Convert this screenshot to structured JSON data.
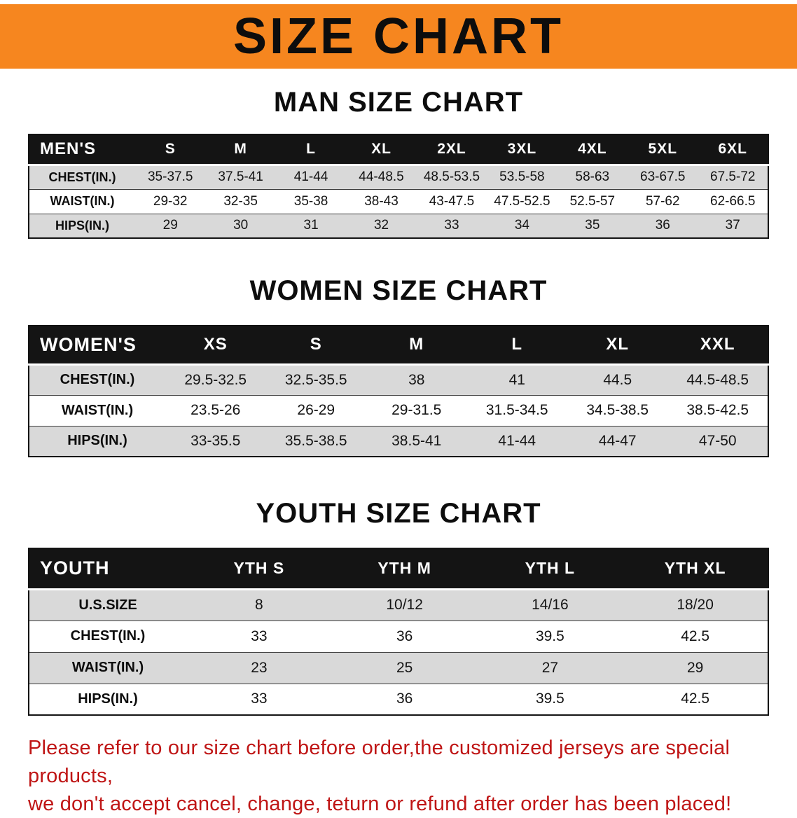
{
  "banner": {
    "title": "SIZE CHART"
  },
  "sections": [
    {
      "id": "men",
      "heading": "MAN SIZE CHART",
      "table": {
        "header": [
          "MEN'S",
          "S",
          "M",
          "L",
          "XL",
          "2XL",
          "3XL",
          "4XL",
          "5XL",
          "6XL"
        ],
        "rows": [
          [
            "CHEST(IN.)",
            "35-37.5",
            "37.5-41",
            "41-44",
            "44-48.5",
            "48.5-53.5",
            "53.5-58",
            "58-63",
            "63-67.5",
            "67.5-72"
          ],
          [
            "WAIST(IN.)",
            "29-32",
            "32-35",
            "35-38",
            "38-43",
            "43-47.5",
            "47.5-52.5",
            "52.5-57",
            "57-62",
            "62-66.5"
          ],
          [
            "HIPS(IN.)",
            "29",
            "30",
            "31",
            "32",
            "33",
            "34",
            "35",
            "36",
            "37"
          ]
        ]
      }
    },
    {
      "id": "women",
      "heading": "WOMEN SIZE CHART",
      "table": {
        "header": [
          "WOMEN'S",
          "XS",
          "S",
          "M",
          "L",
          "XL",
          "XXL"
        ],
        "rows": [
          [
            "CHEST(IN.)",
            "29.5-32.5",
            "32.5-35.5",
            "38",
            "41",
            "44.5",
            "44.5-48.5"
          ],
          [
            "WAIST(IN.)",
            "23.5-26",
            "26-29",
            "29-31.5",
            "31.5-34.5",
            "34.5-38.5",
            "38.5-42.5"
          ],
          [
            "HIPS(IN.)",
            "33-35.5",
            "35.5-38.5",
            "38.5-41",
            "41-44",
            "44-47",
            "47-50"
          ]
        ]
      }
    },
    {
      "id": "youth",
      "heading": "YOUTH SIZE CHART",
      "table": {
        "header": [
          "YOUTH",
          "YTH S",
          "YTH M",
          "YTH L",
          "YTH XL"
        ],
        "rows": [
          [
            "U.S.SIZE",
            "8",
            "10/12",
            "14/16",
            "18/20"
          ],
          [
            "CHEST(IN.)",
            "33",
            "36",
            "39.5",
            "42.5"
          ],
          [
            "WAIST(IN.)",
            "23",
            "25",
            "27",
            "29"
          ],
          [
            "HIPS(IN.)",
            "33",
            "36",
            "39.5",
            "42.5"
          ]
        ]
      }
    }
  ],
  "disclaimer": {
    "lines": [
      "Please refer to our size chart before order,the customized jerseys are special products,",
      "we don't accept cancel, change, teturn or refund after order has been placed!"
    ]
  },
  "colors": {
    "banner_bg": "#f6861f",
    "table_header_bg": "#141414",
    "row_alt_bg": "#d9d9d9",
    "disclaimer_text": "#bf1515"
  }
}
